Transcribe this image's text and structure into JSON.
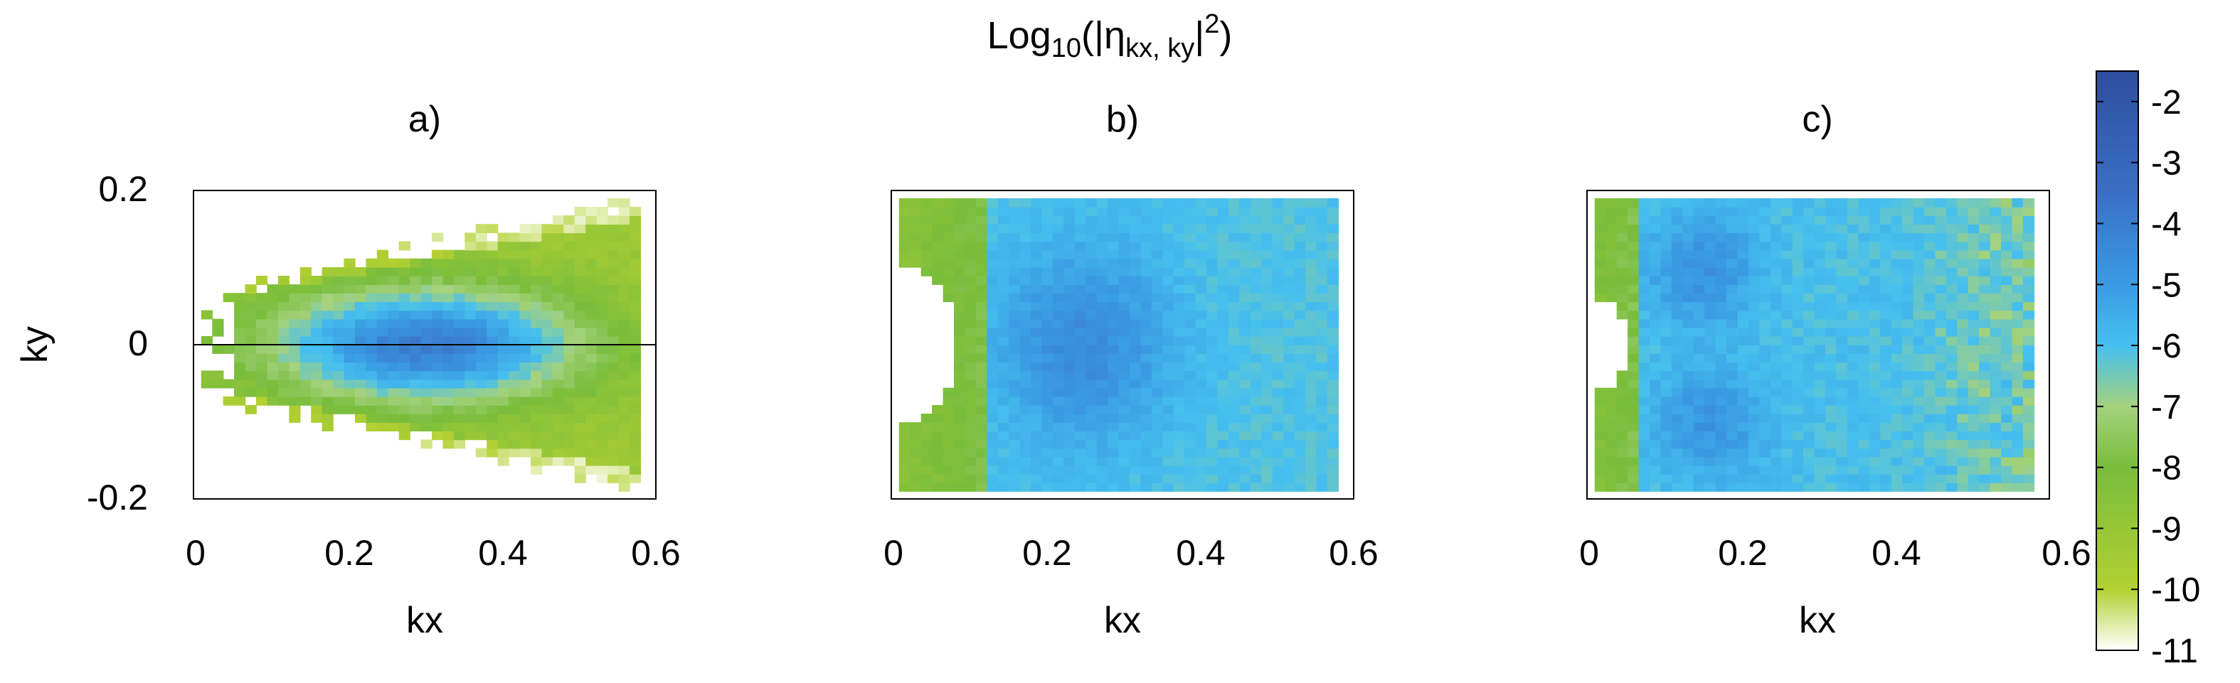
{
  "figure": {
    "title": {
      "base": "Log",
      "sub1": "10",
      "open": "(|η",
      "sub2": "kx, ky",
      "close_pre": "|",
      "sup": "2",
      "close": ")"
    }
  },
  "chart_data": [
    {
      "type": "heatmap",
      "panel_label": "a)",
      "xlabel": "kx",
      "ylabel": "ky",
      "xlim": [
        0,
        0.6
      ],
      "ylim": [
        -0.2,
        0.2
      ],
      "x_ticks": [
        "0",
        "0.2",
        "0.4",
        "0.6"
      ],
      "y_ticks": [
        "0.2",
        "0",
        "-0.2"
      ],
      "zero_axis_line": true,
      "shape": "wedge",
      "grid_kx": [
        0.01,
        0.58
      ],
      "grid_ky": [
        -0.19,
        0.19
      ],
      "peak": {
        "kx": 0.3,
        "ky": 0.0,
        "value": -4
      }
    },
    {
      "type": "heatmap",
      "panel_label": "b)",
      "xlabel": "kx",
      "ylabel": "",
      "xlim": [
        0,
        0.6
      ],
      "ylim": [
        -0.2,
        0.2
      ],
      "x_ticks": [
        "0",
        "0.2",
        "0.4",
        "0.6"
      ],
      "y_ticks": [],
      "zero_axis_line": false,
      "shape": "full",
      "grid_kx": [
        0.01,
        0.58
      ],
      "grid_ky": [
        -0.19,
        0.19
      ],
      "peak": {
        "kx": 0.25,
        "ky": 0.0,
        "value": -4.5
      }
    },
    {
      "type": "heatmap",
      "panel_label": "c)",
      "xlabel": "kx",
      "ylabel": "",
      "xlim": [
        0,
        0.6
      ],
      "ylim": [
        -0.2,
        0.2
      ],
      "x_ticks": [
        "0",
        "0.2",
        "0.4",
        "0.6"
      ],
      "y_ticks": [],
      "zero_axis_line": false,
      "shape": "full",
      "grid_kx": [
        0.01,
        0.58
      ],
      "grid_ky": [
        -0.19,
        0.19
      ],
      "peak": {
        "kx": 0.15,
        "ky": 0.1,
        "value": -4.5
      }
    }
  ],
  "colorbar": {
    "range": [
      -11,
      -1.5
    ],
    "tick_labels": [
      "-2",
      "-3",
      "-4",
      "-5",
      "-6",
      "-7",
      "-8",
      "-9",
      "-10",
      "-11"
    ],
    "tick_values": [
      -2,
      -3,
      -4,
      -5,
      -6,
      -7,
      -8,
      -9,
      -10,
      -11
    ],
    "stops": [
      {
        "v": -11,
        "color": "#ffffff"
      },
      {
        "v": -10,
        "color": "#b3d032"
      },
      {
        "v": -8,
        "color": "#79bd3c"
      },
      {
        "v": -7,
        "color": "#a4d27e"
      },
      {
        "v": -6,
        "color": "#46c0ef"
      },
      {
        "v": -5,
        "color": "#3a9be3"
      },
      {
        "v": -3.5,
        "color": "#3a6fc4"
      },
      {
        "v": -1.5,
        "color": "#2e4e9e"
      }
    ]
  }
}
